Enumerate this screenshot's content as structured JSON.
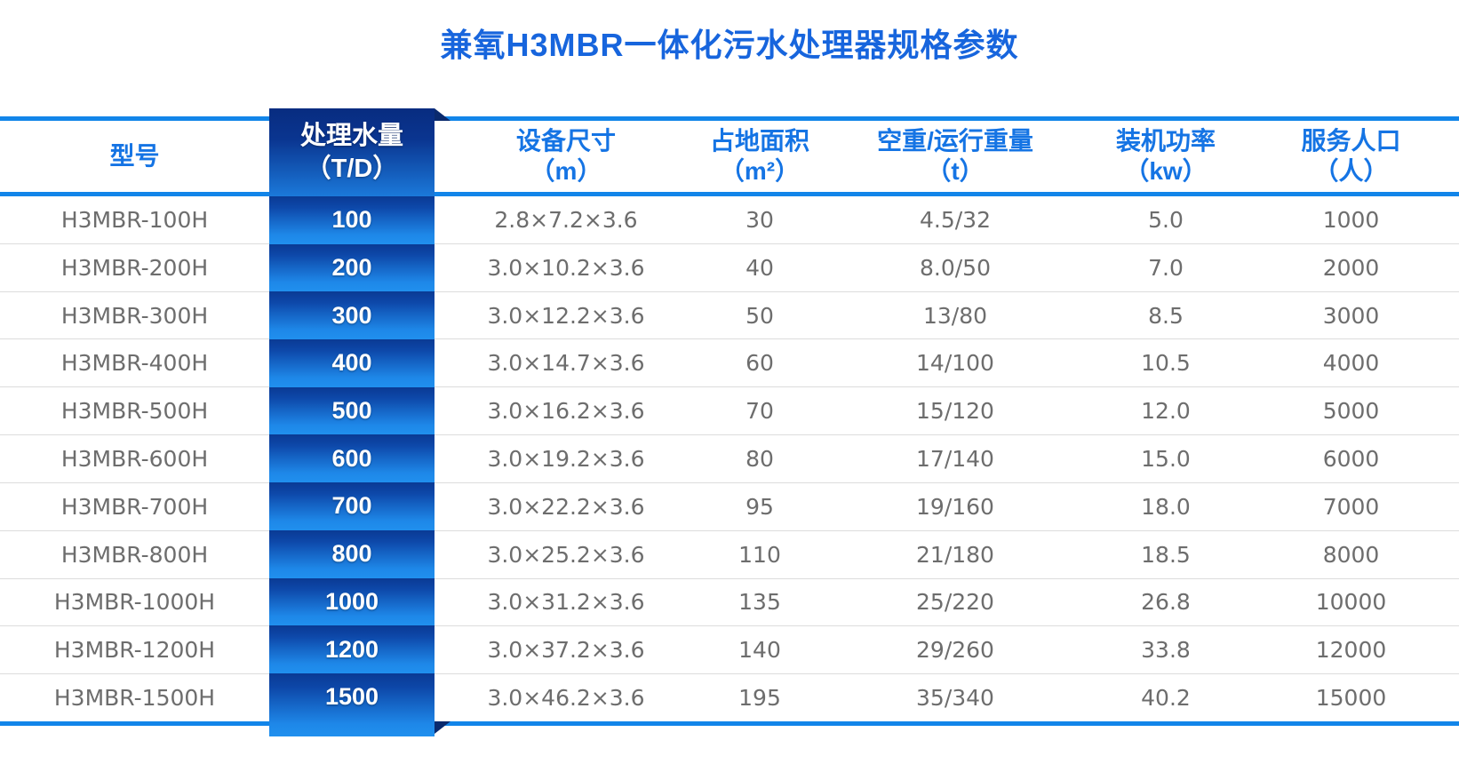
{
  "title": "兼氧H3MBR一体化污水处理器规格参数",
  "colors": {
    "title_blue": "#1765dd",
    "header_blue": "#1574e4",
    "border_blue": "#1285e9",
    "ribbon_dark": "#0a3a94",
    "ribbon_bright": "#1e88ea",
    "fold_navy": "#0a2a6e",
    "body_text_gray": "#6d6d6d"
  },
  "table": {
    "columns": [
      {
        "label": "型号",
        "unit": ""
      },
      {
        "label": "处理水量",
        "unit": "（T/D）"
      },
      {
        "label": "设备尺寸",
        "unit": "（m）"
      },
      {
        "label": "占地面积",
        "unit": "（m²）"
      },
      {
        "label": "空重/运行重量",
        "unit": "（t）"
      },
      {
        "label": "装机功率",
        "unit": "（kw）"
      },
      {
        "label": "服务人口",
        "unit": "（人）"
      }
    ],
    "rows": [
      {
        "model": "H3MBR-100H",
        "capacity": "100",
        "dimensions": "2.8×7.2×3.6",
        "area": "30",
        "weight": "4.5/32",
        "power": "5.0",
        "population": "1000"
      },
      {
        "model": "H3MBR-200H",
        "capacity": "200",
        "dimensions": "3.0×10.2×3.6",
        "area": "40",
        "weight": "8.0/50",
        "power": "7.0",
        "population": "2000"
      },
      {
        "model": "H3MBR-300H",
        "capacity": "300",
        "dimensions": "3.0×12.2×3.6",
        "area": "50",
        "weight": "13/80",
        "power": "8.5",
        "population": "3000"
      },
      {
        "model": "H3MBR-400H",
        "capacity": "400",
        "dimensions": "3.0×14.7×3.6",
        "area": "60",
        "weight": "14/100",
        "power": "10.5",
        "population": "4000"
      },
      {
        "model": "H3MBR-500H",
        "capacity": "500",
        "dimensions": "3.0×16.2×3.6",
        "area": "70",
        "weight": "15/120",
        "power": "12.0",
        "population": "5000"
      },
      {
        "model": "H3MBR-600H",
        "capacity": "600",
        "dimensions": "3.0×19.2×3.6",
        "area": "80",
        "weight": "17/140",
        "power": "15.0",
        "population": "6000"
      },
      {
        "model": "H3MBR-700H",
        "capacity": "700",
        "dimensions": "3.0×22.2×3.6",
        "area": "95",
        "weight": "19/160",
        "power": "18.0",
        "population": "7000"
      },
      {
        "model": "H3MBR-800H",
        "capacity": "800",
        "dimensions": "3.0×25.2×3.6",
        "area": "110",
        "weight": "21/180",
        "power": "18.5",
        "population": "8000"
      },
      {
        "model": "H3MBR-1000H",
        "capacity": "1000",
        "dimensions": "3.0×31.2×3.6",
        "area": "135",
        "weight": "25/220",
        "power": "26.8",
        "population": "10000"
      },
      {
        "model": "H3MBR-1200H",
        "capacity": "1200",
        "dimensions": "3.0×37.2×3.6",
        "area": "140",
        "weight": "29/260",
        "power": "33.8",
        "population": "12000"
      },
      {
        "model": "H3MBR-1500H",
        "capacity": "1500",
        "dimensions": "3.0×46.2×3.6",
        "area": "195",
        "weight": "35/340",
        "power": "40.2",
        "population": "15000"
      }
    ]
  }
}
